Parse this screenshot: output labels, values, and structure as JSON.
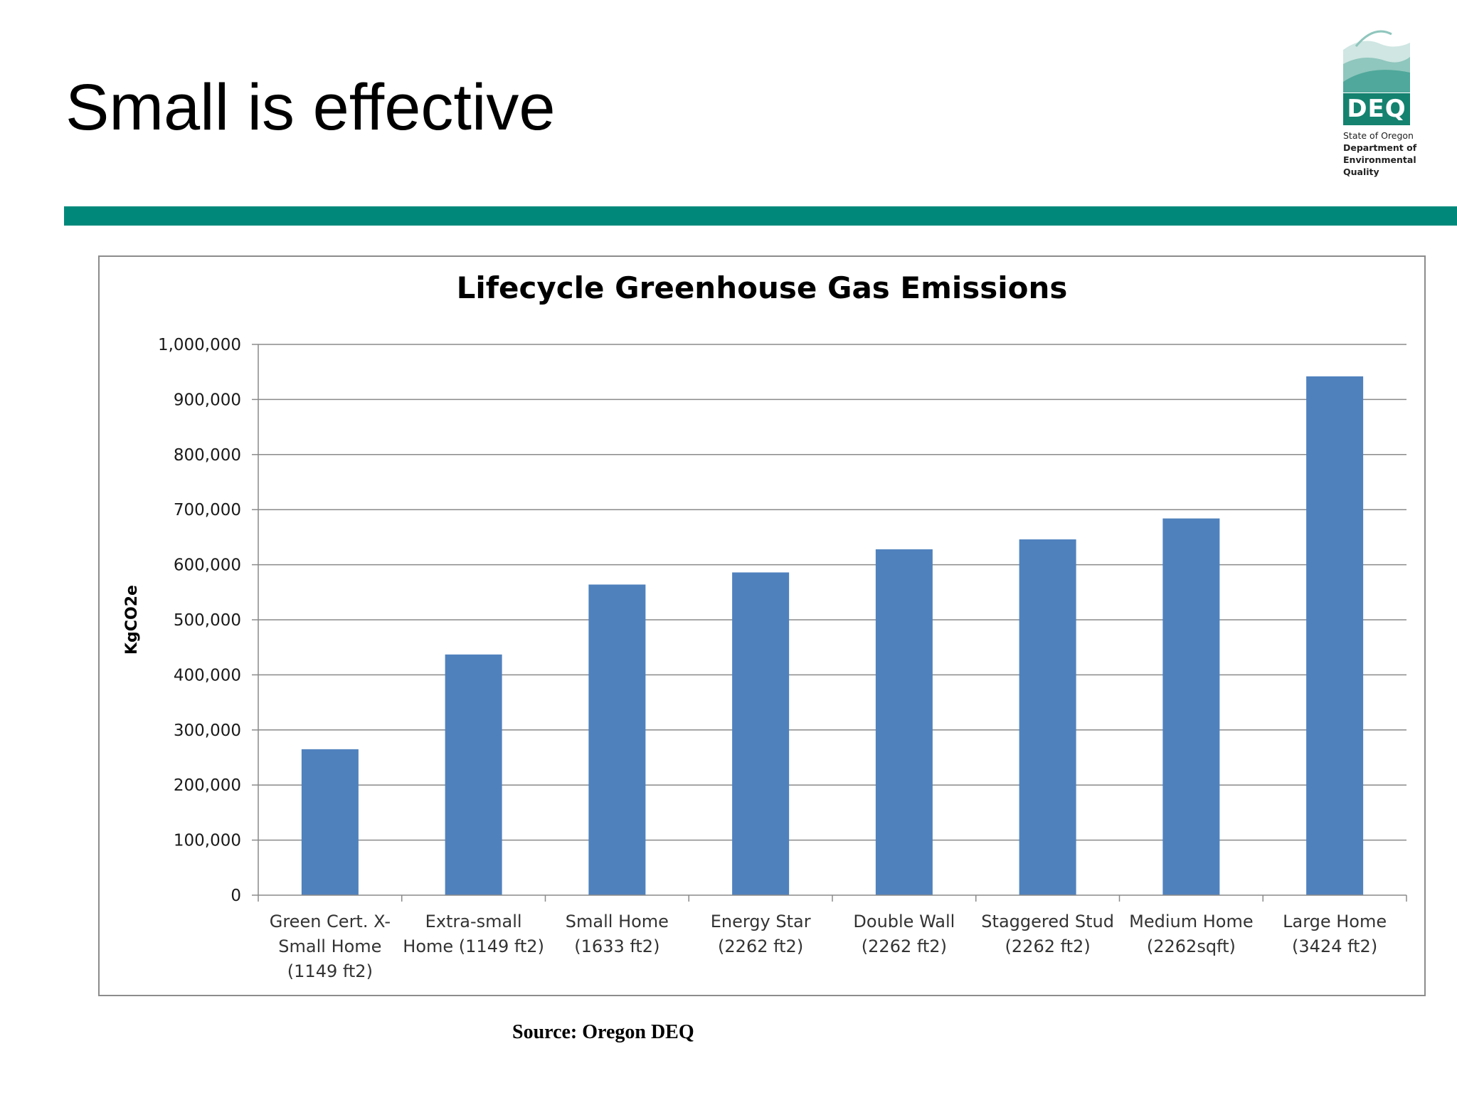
{
  "slide": {
    "title": "Small is effective",
    "source": "Source: Oregon DEQ",
    "accent_color": "#00897b"
  },
  "logo": {
    "badge": "DEQ",
    "lines": [
      "State of Oregon",
      "Department of",
      "Environmental",
      "Quality"
    ],
    "badge_color": "#14826f"
  },
  "chart_data": {
    "type": "bar",
    "title": "Lifecycle Greenhouse Gas Emissions",
    "xlabel": "",
    "ylabel": "KgCO2e",
    "ylim": [
      0,
      1000000
    ],
    "yticks": [
      0,
      100000,
      200000,
      300000,
      400000,
      500000,
      600000,
      700000,
      800000,
      900000,
      1000000
    ],
    "ytick_labels": [
      "0",
      "100,000",
      "200,000",
      "300,000",
      "400,000",
      "500,000",
      "600,000",
      "700,000",
      "800,000",
      "900,000",
      "1,000,000"
    ],
    "categories": [
      [
        "Green Cert. X-",
        "Small Home",
        "(1149 ft2)"
      ],
      [
        "Extra-small",
        "Home (1149 ft2)"
      ],
      [
        "Small Home",
        "(1633 ft2)"
      ],
      [
        "Energy Star",
        "(2262 ft2)"
      ],
      [
        "Double Wall",
        "(2262 ft2)"
      ],
      [
        "Staggered Stud",
        "(2262 ft2)"
      ],
      [
        "Medium Home",
        "(2262sqft)"
      ],
      [
        "Large Home",
        "(3424 ft2)"
      ]
    ],
    "values": [
      265000,
      437000,
      564000,
      586000,
      628000,
      646000,
      684000,
      942000
    ],
    "bar_color": "#4f81bd",
    "grid": true,
    "legend": "none"
  }
}
